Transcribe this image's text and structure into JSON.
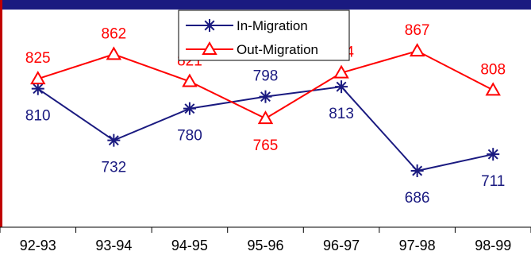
{
  "chart_data": {
    "type": "line",
    "categories": [
      "92-93",
      "93-94",
      "94-95",
      "95-96",
      "96-97",
      "97-98",
      "98-99"
    ],
    "series": [
      {
        "name": "In-Migration",
        "values": [
          810,
          732,
          780,
          798,
          813,
          686,
          711
        ],
        "color": "#1a1a80",
        "marker": "asterisk",
        "label_position": [
          "below",
          "below",
          "below",
          "above",
          "below",
          "below",
          "below"
        ]
      },
      {
        "name": "Out-Migration",
        "values": [
          825,
          862,
          821,
          765,
          834,
          867,
          808
        ],
        "color": "#ff0000",
        "marker": "triangle",
        "label_position": [
          "above",
          "above",
          "above",
          "below",
          "above",
          "above",
          "above"
        ]
      }
    ],
    "ylim": [
      620,
      920
    ],
    "grid": false,
    "legend": "top-center",
    "frame_color": "#1a1a80"
  }
}
